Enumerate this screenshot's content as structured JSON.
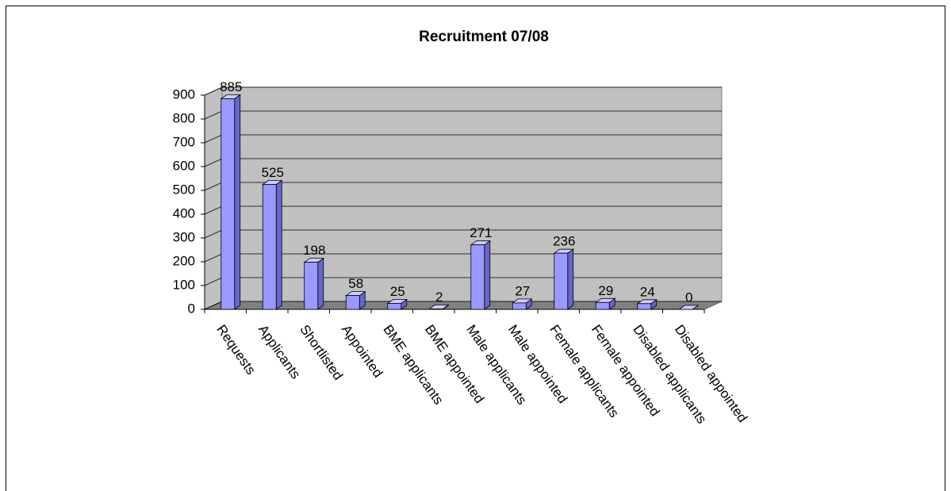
{
  "chart_data": {
    "type": "bar3d",
    "title": "Recruitment 07/08",
    "categories": [
      "Requests",
      "Applicants",
      "Shortlisted",
      "Appointed",
      "BME applicants",
      "BME appointed",
      "Male applicants",
      "Male appointed",
      "Female applicants",
      "Female appointed",
      "Disabled applicants",
      "Disabled appointed"
    ],
    "values": [
      885,
      525,
      198,
      58,
      25,
      2,
      271,
      27,
      236,
      29,
      24,
      0
    ],
    "color": "#9999ff",
    "ylim": [
      0,
      900
    ],
    "yticks": [
      0,
      100,
      200,
      300,
      400,
      500,
      600,
      700,
      800,
      900
    ],
    "grid": true
  }
}
